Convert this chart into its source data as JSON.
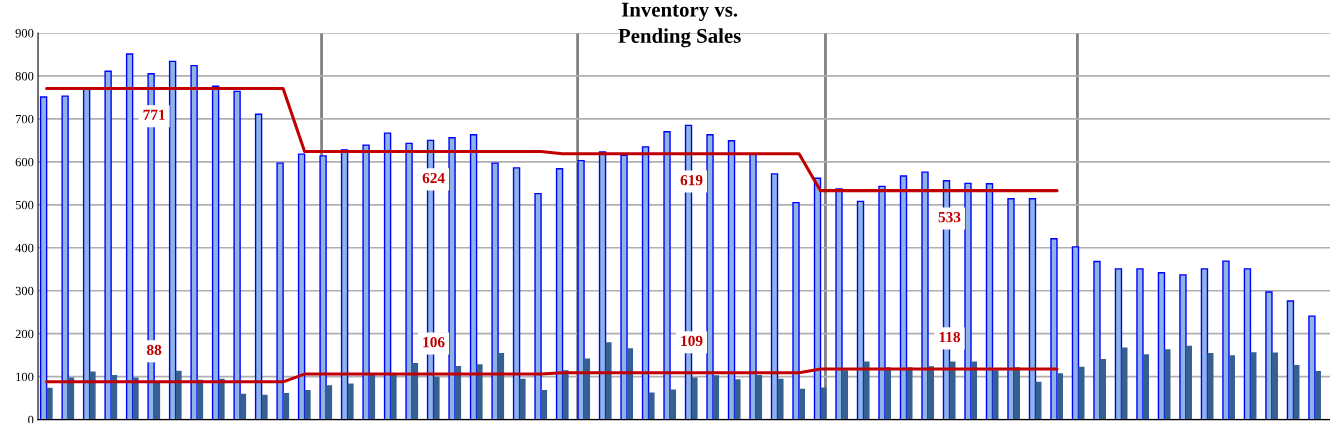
{
  "chart_data": {
    "type": "bar",
    "title": "Inventory vs.\nPending Sales",
    "categories": [
      null,
      null,
      null,
      null,
      null,
      null,
      null,
      null,
      null,
      null,
      null,
      null,
      null,
      null,
      null,
      null,
      null,
      null,
      null,
      null,
      null,
      null,
      null,
      null,
      null,
      null,
      null,
      null,
      null,
      null,
      null,
      null,
      null,
      null,
      null,
      null,
      null,
      null,
      null,
      null,
      null,
      null,
      null,
      null,
      null,
      null,
      null,
      null,
      null,
      null,
      null,
      null,
      null,
      null,
      null,
      null,
      null,
      null,
      null,
      null
    ],
    "ylim": [
      0,
      900
    ],
    "yticks": [
      0,
      100,
      200,
      300,
      400,
      500,
      600,
      700,
      800,
      900
    ],
    "tick_labels": "y",
    "grid": true,
    "series": [
      {
        "color": "#8db4e2",
        "values": [
          751,
          753,
          770,
          811,
          851,
          805,
          834,
          824,
          776,
          764,
          711,
          597,
          618,
          614,
          628,
          639,
          667,
          643,
          650,
          656,
          663,
          597,
          586,
          526,
          584,
          603,
          623,
          615,
          635,
          670,
          685,
          663,
          649,
          619,
          572,
          505,
          562,
          537,
          508,
          543,
          567,
          576,
          556,
          550,
          549,
          514,
          514,
          421,
          402,
          368,
          351,
          351,
          342,
          337,
          351,
          369,
          351,
          297,
          276,
          241
        ]
      },
      {
        "color": "#376092",
        "values": [
          74,
          98,
          112,
          104,
          98,
          86,
          114,
          93,
          95,
          60,
          58,
          62,
          69,
          80,
          84,
          108,
          105,
          132,
          100,
          125,
          129,
          155,
          95,
          69,
          115,
          142,
          180,
          166,
          63,
          70,
          98,
          103,
          94,
          104,
          95,
          72,
          75,
          115,
          135,
          122,
          122,
          124,
          135,
          135,
          115,
          122,
          88,
          108,
          123,
          141,
          168,
          152,
          164,
          172,
          155,
          150,
          157,
          156,
          127,
          113
        ]
      },
      {
        "type": "line",
        "color": "#c00000",
        "values": [
          771,
          771,
          771,
          771,
          771,
          771,
          771,
          771,
          771,
          771,
          771,
          771,
          624,
          624,
          624,
          624,
          624,
          624,
          624,
          624,
          624,
          624,
          624,
          624,
          619,
          619,
          619,
          619,
          619,
          619,
          619,
          619,
          619,
          619,
          619,
          619,
          533,
          533,
          533,
          533,
          533,
          533,
          533,
          533,
          533,
          533,
          533,
          533,
          null,
          null,
          null,
          null,
          null,
          null,
          null,
          null,
          null,
          null,
          null,
          null
        ],
        "value_labels": [
          null,
          null,
          null,
          null,
          null,
          "771",
          null,
          null,
          null,
          null,
          null,
          null,
          null,
          null,
          null,
          null,
          null,
          null,
          "624",
          null,
          null,
          null,
          null,
          null,
          null,
          null,
          null,
          null,
          null,
          null,
          "619",
          null,
          null,
          null,
          null,
          null,
          null,
          null,
          null,
          null,
          null,
          null,
          "533",
          null,
          null,
          null,
          null,
          null,
          null,
          null,
          null,
          null,
          null,
          null,
          null,
          null,
          null,
          null,
          null,
          null
        ]
      },
      {
        "type": "line",
        "color": "#c00000",
        "values": [
          88,
          88,
          88,
          88,
          88,
          88,
          88,
          88,
          88,
          88,
          88,
          88,
          106,
          106,
          106,
          106,
          106,
          106,
          106,
          106,
          106,
          106,
          106,
          106,
          109,
          109,
          109,
          109,
          109,
          109,
          109,
          109,
          109,
          109,
          109,
          109,
          118,
          118,
          118,
          118,
          118,
          118,
          118,
          118,
          118,
          118,
          118,
          118,
          null,
          null,
          null,
          null,
          null,
          null,
          null,
          null,
          null,
          null,
          null,
          null
        ],
        "value_labels": [
          null,
          null,
          null,
          null,
          null,
          "88",
          null,
          null,
          null,
          null,
          null,
          null,
          null,
          null,
          null,
          null,
          null,
          null,
          "106",
          null,
          null,
          null,
          null,
          null,
          null,
          null,
          null,
          null,
          null,
          null,
          "109",
          null,
          null,
          null,
          null,
          null,
          null,
          null,
          null,
          null,
          null,
          null,
          "118",
          null,
          null,
          null,
          null,
          null,
          null,
          null,
          null,
          null,
          null,
          null,
          null,
          null,
          null,
          null,
          null,
          null
        ]
      }
    ],
    "legend": false
  }
}
